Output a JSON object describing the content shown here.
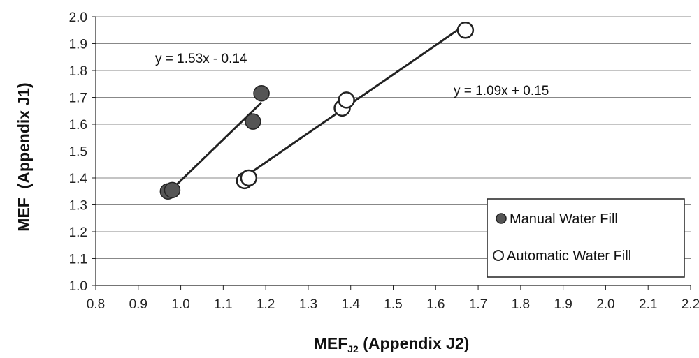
{
  "chart_data": {
    "type": "scatter",
    "title": "",
    "xlabel": "MEF",
    "xlabel_sub": "J2",
    "xlabel_rest": " (Appendix J2)",
    "ylabel": "MEF  (Appendix J1)",
    "xlim": [
      0.8,
      2.2
    ],
    "ylim": [
      1.0,
      2.0
    ],
    "x_ticks": [
      "0.8",
      "0.9",
      "1.0",
      "1.1",
      "1.2",
      "1.3",
      "1.4",
      "1.5",
      "1.6",
      "1.7",
      "1.8",
      "1.9",
      "2.0",
      "2.1",
      "2.2"
    ],
    "y_ticks": [
      "1.0",
      "1.1",
      "1.2",
      "1.3",
      "1.4",
      "1.5",
      "1.6",
      "1.7",
      "1.8",
      "1.9",
      "2.0"
    ],
    "grid": "horizontal",
    "legend_position": "bottom-right",
    "colors": {
      "manual": "#555555",
      "automatic": "#ffffff",
      "stroke": "#222222",
      "trendline": "#222222",
      "grid": "#888888"
    },
    "series": [
      {
        "name": "Manual Water Fill",
        "marker": "filled-circle",
        "points": [
          [
            0.97,
            1.35
          ],
          [
            0.98,
            1.355
          ],
          [
            1.17,
            1.61
          ],
          [
            1.19,
            1.715
          ]
        ],
        "trendline": {
          "equation": "y = 1.53x - 0.14",
          "slope": 1.53,
          "intercept": -0.14,
          "x_range": [
            0.97,
            1.19
          ]
        }
      },
      {
        "name": "Automatic Water Fill",
        "marker": "open-circle",
        "points": [
          [
            1.15,
            1.39
          ],
          [
            1.16,
            1.4
          ],
          [
            1.38,
            1.66
          ],
          [
            1.39,
            1.69
          ],
          [
            1.67,
            1.95
          ]
        ],
        "trendline": {
          "equation": "y = 1.09x + 0.15",
          "slope": 1.09,
          "intercept": 0.15,
          "x_range": [
            1.15,
            1.67
          ]
        }
      }
    ]
  }
}
